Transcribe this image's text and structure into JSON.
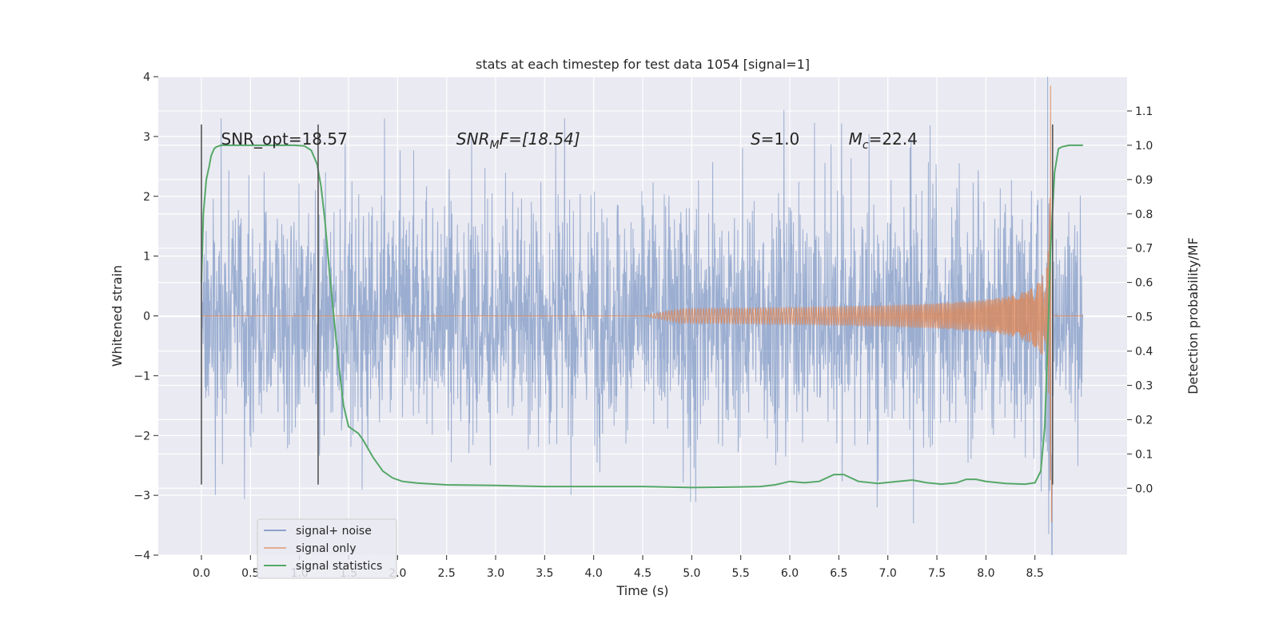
{
  "chart_data": {
    "type": "line",
    "title": "stats at each timestep for test data 1054 [signal=1]",
    "xlabel": "Time (s)",
    "ylabel": "Whitened strain",
    "ylabel_right": "Detection probability/MF",
    "xlim": [
      -0.44,
      9.44
    ],
    "ylim": [
      -4.0,
      4.0
    ],
    "ylim_right": [
      -0.195,
      1.2
    ],
    "xticks": [
      0.0,
      0.5,
      1.0,
      1.5,
      2.0,
      2.5,
      3.0,
      3.5,
      4.0,
      4.5,
      5.0,
      5.5,
      6.0,
      6.5,
      7.0,
      7.5,
      8.0,
      8.5
    ],
    "xtick_labels": [
      "0.0",
      "0.5",
      "1.0",
      "1.5",
      "2.0",
      "2.5",
      "3.0",
      "3.5",
      "4.0",
      "4.5",
      "5.0",
      "5.5",
      "6.0",
      "6.5",
      "7.0",
      "7.5",
      "8.0",
      "8.5"
    ],
    "yticks": [
      4,
      3,
      2,
      1,
      0,
      -1,
      -2,
      -3,
      -4
    ],
    "ytick_labels": [
      "4",
      "3",
      "2",
      "1",
      "0",
      "−1",
      "−2",
      "−3",
      "−4"
    ],
    "yticks_right": [
      1.1,
      1.0,
      0.9,
      0.8,
      0.7,
      0.6,
      0.5,
      0.4,
      0.3,
      0.2,
      0.1,
      0.0
    ],
    "ytick_labels_right": [
      "1.1",
      "1.0",
      "0.9",
      "0.8",
      "0.7",
      "0.6",
      "0.5",
      "0.4",
      "0.3",
      "0.2",
      "0.1",
      "0.0"
    ],
    "annotations": {
      "snr_opt": "SNR_opt=18.57",
      "snr_mf_base": "SNR",
      "snr_mf_sub": "M",
      "snr_mf_rest": "F=[18.54]",
      "s_base": "S",
      "s_rest": "=1.0",
      "mc_base": "M",
      "mc_sub": "c",
      "mc_rest": "=22.4"
    },
    "vlines_x": [
      0.0,
      1.19,
      8.68
    ],
    "vlines_yrange": [
      -2.82,
      3.2
    ],
    "series": [
      {
        "name": "signal+ noise",
        "color": "#4c72b0",
        "x_range": [
          0.0,
          8.99
        ],
        "envelope_note": "dense whitened noise, roughly within ±1.4 with spikes to about ±3; merges with chirp near 8.6",
        "peak_points": [
          [
            8.63,
            4.02
          ],
          [
            8.64,
            -3.65
          ]
        ]
      },
      {
        "name": "signal only",
        "color": "#dd8452",
        "x_range": [
          0.0,
          8.99
        ],
        "chirp_start": 4.5,
        "merger_time": 8.66,
        "peak_points": [
          [
            8.66,
            3.85
          ],
          [
            8.67,
            -3.45
          ]
        ]
      },
      {
        "name": "signal statistics",
        "color": "#55a868",
        "axis": "right",
        "x": [
          0.0,
          0.02,
          0.05,
          0.08,
          0.1,
          0.13,
          0.15,
          0.2,
          0.3,
          0.5,
          0.8,
          0.95,
          1.05,
          1.12,
          1.18,
          1.22,
          1.26,
          1.3,
          1.35,
          1.4,
          1.45,
          1.5,
          1.55,
          1.6,
          1.65,
          1.75,
          1.85,
          1.95,
          2.05,
          2.2,
          2.5,
          3.0,
          3.5,
          4.0,
          4.5,
          5.0,
          5.5,
          5.7,
          5.85,
          6.0,
          6.15,
          6.3,
          6.45,
          6.55,
          6.7,
          6.9,
          7.1,
          7.25,
          7.4,
          7.55,
          7.7,
          7.8,
          7.9,
          8.0,
          8.2,
          8.4,
          8.5,
          8.56,
          8.6,
          8.63,
          8.66,
          8.7,
          8.74,
          8.78,
          8.85,
          8.99
        ],
        "values": [
          0.6,
          0.8,
          0.9,
          0.94,
          0.97,
          0.99,
          0.995,
          1.0,
          1.0,
          1.0,
          1.0,
          1.0,
          0.998,
          0.985,
          0.945,
          0.88,
          0.78,
          0.65,
          0.5,
          0.36,
          0.24,
          0.18,
          0.17,
          0.16,
          0.14,
          0.09,
          0.05,
          0.03,
          0.02,
          0.015,
          0.01,
          0.008,
          0.005,
          0.005,
          0.005,
          0.002,
          0.004,
          0.005,
          0.01,
          0.02,
          0.016,
          0.02,
          0.04,
          0.04,
          0.02,
          0.014,
          0.02,
          0.024,
          0.016,
          0.012,
          0.016,
          0.026,
          0.026,
          0.02,
          0.014,
          0.012,
          0.016,
          0.05,
          0.18,
          0.42,
          0.7,
          0.92,
          0.99,
          0.996,
          1.0,
          1.0
        ]
      }
    ],
    "legend": {
      "location": "lower-left",
      "labels": [
        "signal+ noise",
        "signal only",
        "signal statistics"
      ]
    }
  }
}
